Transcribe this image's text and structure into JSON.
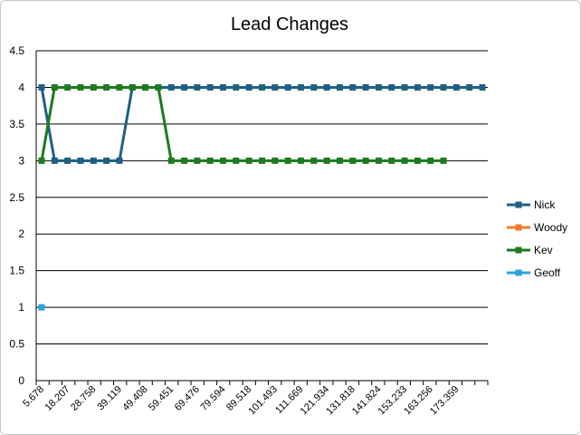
{
  "chart_data": {
    "type": "line",
    "title": "Lead Changes",
    "xlabel": "",
    "ylabel": "",
    "ylim": [
      0,
      4.5
    ],
    "yticks": [
      "0",
      "0.5",
      "1",
      "1.5",
      "2",
      "2.5",
      "3",
      "3.5",
      "4",
      "4.5"
    ],
    "grid": true,
    "legend_position": "right",
    "point_count": 35,
    "x_tick_labels": [
      "5.678",
      "18.207",
      "28.758",
      "39.119",
      "49.408",
      "59.451",
      "69.476",
      "79.594",
      "89.518",
      "101.493",
      "111.669",
      "121.934",
      "131.818",
      "141.824",
      "153.233",
      "163.256",
      "173.359"
    ],
    "series": [
      {
        "name": "Nick",
        "color": "#1f5f85",
        "values": [
          4,
          3,
          3,
          3,
          3,
          3,
          3,
          4,
          4,
          4,
          4,
          4,
          4,
          4,
          4,
          4,
          4,
          4,
          4,
          4,
          4,
          4,
          4,
          4,
          4,
          4,
          4,
          4,
          4,
          4,
          4,
          4,
          4,
          4,
          4
        ]
      },
      {
        "name": "Woody",
        "color": "#f07b2e",
        "values": []
      },
      {
        "name": "Kev",
        "color": "#1e7a1e",
        "values": [
          3,
          4,
          4,
          4,
          4,
          4,
          4,
          4,
          4,
          4,
          3,
          3,
          3,
          3,
          3,
          3,
          3,
          3,
          3,
          3,
          3,
          3,
          3,
          3,
          3,
          3,
          3,
          3,
          3,
          3,
          3,
          3
        ]
      },
      {
        "name": "Geoff",
        "color": "#2aa3d8",
        "values": [
          1
        ]
      }
    ]
  }
}
